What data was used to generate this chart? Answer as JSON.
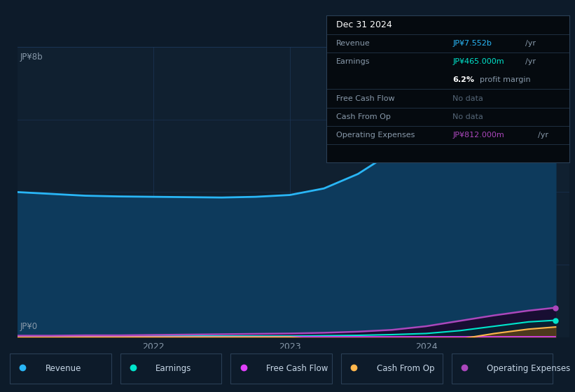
{
  "background_color": "#0d1b2a",
  "plot_bg_color": "#102030",
  "ylabel_top": "JP¥8b",
  "ylabel_bottom": "JP¥0",
  "x_years": [
    2021.0,
    2021.25,
    2021.5,
    2021.75,
    2022.0,
    2022.25,
    2022.5,
    2022.75,
    2023.0,
    2023.25,
    2023.5,
    2023.75,
    2024.0,
    2024.25,
    2024.5,
    2024.75,
    2024.95
  ],
  "revenue": [
    4.0,
    3.95,
    3.9,
    3.88,
    3.87,
    3.86,
    3.85,
    3.87,
    3.92,
    4.1,
    4.5,
    5.1,
    5.8,
    6.5,
    7.0,
    7.4,
    7.552
  ],
  "earnings": [
    0.03,
    0.03,
    0.03,
    0.03,
    0.03,
    0.03,
    0.03,
    0.03,
    0.03,
    0.04,
    0.05,
    0.07,
    0.1,
    0.18,
    0.3,
    0.42,
    0.465
  ],
  "free_cash_flow": [
    0.01,
    0.01,
    0.01,
    0.01,
    0.01,
    0.01,
    0.01,
    0.01,
    0.01,
    0.01,
    0.01,
    0.01,
    0.01,
    0.01,
    0.01,
    0.01,
    0.01
  ],
  "cash_from_op": [
    0.0,
    0.0,
    0.0,
    0.0,
    0.0,
    0.0,
    0.0,
    0.0,
    0.0,
    -0.08,
    -0.18,
    -0.22,
    -0.18,
    -0.05,
    0.1,
    0.22,
    0.28
  ],
  "operating_expenses": [
    0.04,
    0.04,
    0.05,
    0.05,
    0.06,
    0.07,
    0.08,
    0.09,
    0.1,
    0.12,
    0.15,
    0.2,
    0.3,
    0.45,
    0.6,
    0.73,
    0.812
  ],
  "revenue_color": "#29b6f6",
  "revenue_fill": "#0d3a5c",
  "earnings_color": "#00e5cc",
  "free_cash_flow_color": "#e040fb",
  "cash_from_op_color": "#ffb74d",
  "operating_expenses_color": "#ab47bc",
  "operating_expenses_fill": "#1a0a2e",
  "grid_color": "#1e3a5f",
  "tick_color": "#8899aa",
  "info_box": {
    "date": "Dec 31 2024",
    "revenue_label": "Revenue",
    "revenue_value": "JP¥7.552b",
    "revenue_suffix": "/yr",
    "earnings_label": "Earnings",
    "earnings_value": "JP¥465.000m",
    "earnings_suffix": "/yr",
    "profit_margin": "6.2%",
    "profit_margin_text": "profit margin",
    "fcf_label": "Free Cash Flow",
    "fcf_value": "No data",
    "cashop_label": "Cash From Op",
    "cashop_value": "No data",
    "opex_label": "Operating Expenses",
    "opex_value": "JP¥812.000m",
    "opex_suffix": "/yr",
    "revenue_value_color": "#29b6f6",
    "earnings_value_color": "#00e5cc",
    "opex_value_color": "#ab47bc",
    "nodata_color": "#556677",
    "box_bg": "#050a0f",
    "box_border": "#2a3f55",
    "label_color": "#8899aa",
    "date_color": "#ffffff"
  },
  "legend_items": [
    {
      "label": "Revenue",
      "color": "#29b6f6"
    },
    {
      "label": "Earnings",
      "color": "#00e5cc"
    },
    {
      "label": "Free Cash Flow",
      "color": "#e040fb"
    },
    {
      "label": "Cash From Op",
      "color": "#ffb74d"
    },
    {
      "label": "Operating Expenses",
      "color": "#ab47bc"
    }
  ],
  "ylim": [
    0,
    8.0
  ],
  "xlim": [
    2021.0,
    2025.05
  ]
}
